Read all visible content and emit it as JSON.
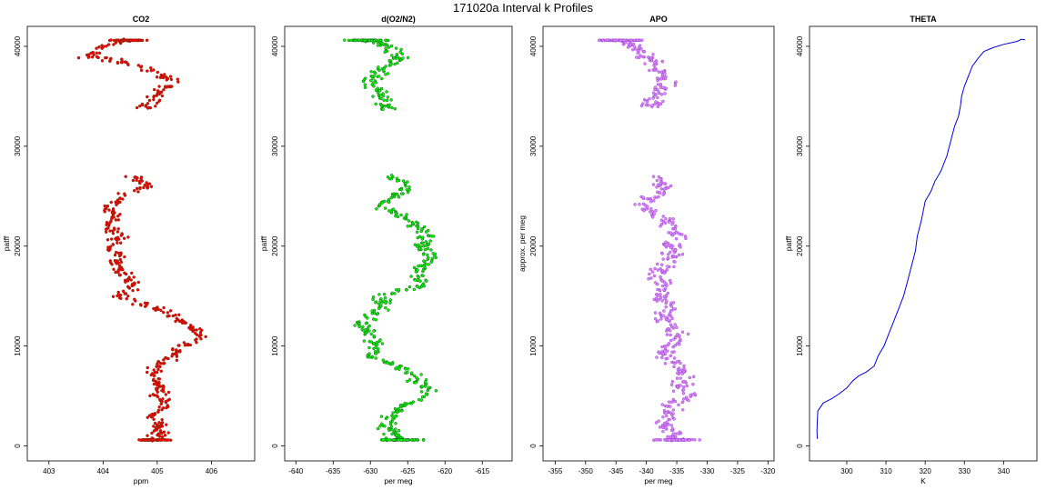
{
  "figure": {
    "title": "171020a   Interval k Profiles"
  },
  "chart_data": [
    {
      "type": "scatter",
      "title": "CO2",
      "xlabel": "ppm",
      "ylabel": "patff",
      "xlim": [
        402.6,
        406.8
      ],
      "ylim": [
        -1500,
        42000
      ],
      "xticks": [
        403,
        404,
        405,
        406
      ],
      "yticks": [
        0,
        10000,
        20000,
        30000,
        40000
      ],
      "colors": {
        "stroke": "#7a2a10",
        "fill": "#ff0000"
      },
      "trace": [
        [
          404.5,
          40600
        ],
        [
          404.0,
          40000
        ],
        [
          403.7,
          39000
        ],
        [
          404.3,
          38500
        ],
        [
          404.9,
          37500
        ],
        [
          405.3,
          36500
        ],
        [
          405.1,
          35500
        ],
        [
          404.9,
          34500
        ],
        [
          404.7,
          33700
        ],
        [
          404.6,
          27000
        ],
        [
          404.8,
          26000
        ],
        [
          404.3,
          25000
        ],
        [
          404.1,
          24000
        ],
        [
          404.2,
          23000
        ],
        [
          404.1,
          22000
        ],
        [
          404.3,
          21000
        ],
        [
          404.1,
          20000
        ],
        [
          404.3,
          19000
        ],
        [
          404.2,
          18000
        ],
        [
          404.4,
          17000
        ],
        [
          404.6,
          16000
        ],
        [
          404.3,
          15000
        ],
        [
          404.9,
          14000
        ],
        [
          405.3,
          13000
        ],
        [
          405.6,
          12000
        ],
        [
          405.8,
          11000
        ],
        [
          405.5,
          10000
        ],
        [
          405.3,
          9000
        ],
        [
          405.0,
          8000
        ],
        [
          404.9,
          7000
        ],
        [
          405.1,
          6000
        ],
        [
          405.0,
          5000
        ],
        [
          405.2,
          4000
        ],
        [
          404.9,
          3000
        ],
        [
          405.1,
          2000
        ],
        [
          405.0,
          1200
        ],
        [
          404.9,
          600
        ]
      ],
      "spread": 0.22,
      "points_per_segment": 14
    },
    {
      "type": "scatter",
      "title": "d(O2/N2)",
      "xlabel": "per meg",
      "ylabel": "patff",
      "xlim": [
        -641.5,
        -611
      ],
      "ylim": [
        -1500,
        42000
      ],
      "xticks": [
        -640,
        -635,
        -630,
        -625,
        -620,
        -615
      ],
      "yticks": [
        0,
        10000,
        20000,
        30000,
        40000
      ],
      "colors": {
        "stroke": "#1a5a1a",
        "fill": "#00ff00"
      },
      "trace": [
        [
          -630,
          40600
        ],
        [
          -628,
          40000
        ],
        [
          -626,
          39000
        ],
        [
          -627,
          38500
        ],
        [
          -629,
          37500
        ],
        [
          -630,
          36500
        ],
        [
          -629,
          35500
        ],
        [
          -628,
          34500
        ],
        [
          -628,
          33800
        ],
        [
          -627,
          27000
        ],
        [
          -625,
          26000
        ],
        [
          -627,
          25000
        ],
        [
          -629,
          24000
        ],
        [
          -626,
          23000
        ],
        [
          -624,
          22000
        ],
        [
          -622,
          21000
        ],
        [
          -623,
          20000
        ],
        [
          -622,
          19000
        ],
        [
          -623,
          18000
        ],
        [
          -624,
          17000
        ],
        [
          -623,
          16000
        ],
        [
          -629,
          15000
        ],
        [
          -628,
          14000
        ],
        [
          -630,
          13000
        ],
        [
          -631,
          12000
        ],
        [
          -630,
          11000
        ],
        [
          -629,
          10000
        ],
        [
          -630,
          9000
        ],
        [
          -626,
          8000
        ],
        [
          -624,
          7000
        ],
        [
          -623,
          6000
        ],
        [
          -622,
          5000
        ],
        [
          -626,
          4000
        ],
        [
          -627,
          3000
        ],
        [
          -628,
          2000
        ],
        [
          -627,
          1200
        ],
        [
          -626,
          600
        ]
      ],
      "spread": 1.8,
      "points_per_segment": 14
    },
    {
      "type": "scatter",
      "title": "APO",
      "xlabel": "per meg",
      "ylabel": "approx. per meg",
      "xlim": [
        -357,
        -319
      ],
      "ylim": [
        -1500,
        42000
      ],
      "xticks": [
        -355,
        -350,
        -345,
        -340,
        -335,
        -330,
        -325,
        -320
      ],
      "yticks": [
        0,
        10000,
        20000,
        30000,
        40000
      ],
      "colors": {
        "stroke": "#9a40d0",
        "fill": "#dd88ff"
      },
      "trace": [
        [
          -344,
          40600
        ],
        [
          -342,
          40000
        ],
        [
          -340,
          39000
        ],
        [
          -339,
          38500
        ],
        [
          -338,
          37500
        ],
        [
          -337,
          36500
        ],
        [
          -338,
          35500
        ],
        [
          -339,
          34500
        ],
        [
          -339,
          33800
        ],
        [
          -338,
          27000
        ],
        [
          -337,
          26000
        ],
        [
          -339,
          25000
        ],
        [
          -341,
          24000
        ],
        [
          -338,
          23000
        ],
        [
          -336,
          22000
        ],
        [
          -335,
          21000
        ],
        [
          -336,
          20000
        ],
        [
          -336,
          19000
        ],
        [
          -337,
          18000
        ],
        [
          -338,
          17000
        ],
        [
          -337,
          16000
        ],
        [
          -338,
          15000
        ],
        [
          -336,
          14000
        ],
        [
          -337,
          13000
        ],
        [
          -336,
          12000
        ],
        [
          -335,
          11000
        ],
        [
          -336,
          10000
        ],
        [
          -337,
          9000
        ],
        [
          -334,
          8000
        ],
        [
          -333,
          7000
        ],
        [
          -334,
          6000
        ],
        [
          -333,
          5000
        ],
        [
          -336,
          4000
        ],
        [
          -336,
          3000
        ],
        [
          -337,
          2000
        ],
        [
          -336,
          1200
        ],
        [
          -335,
          600
        ]
      ],
      "spread": 2.4,
      "points_per_segment": 14
    },
    {
      "type": "line",
      "title": "THETA",
      "xlabel": "K",
      "ylabel": "patff",
      "xlim": [
        290.5,
        348.5
      ],
      "ylim": [
        -1500,
        42000
      ],
      "xticks": [
        300,
        310,
        320,
        330,
        340
      ],
      "yticks": [
        0,
        10000,
        20000,
        30000,
        40000
      ],
      "colors": {
        "line": "#0000dd"
      },
      "x": [
        292.5,
        292.4,
        292.5,
        292.6,
        294.0,
        296.0,
        298.0,
        300.0,
        301.5,
        303.0,
        305.0,
        307.0,
        308.0,
        309.5,
        310.5,
        311.5,
        313.0,
        314.5,
        315.5,
        316.5,
        317.5,
        318.0,
        319.0,
        320.0,
        321.5,
        322.5,
        324.0,
        325.5,
        326.5,
        327.5,
        328.5,
        329.0,
        329.3,
        330.0,
        331.0,
        332.0,
        333.5,
        335.0,
        337.5,
        340.0,
        343.5,
        344.5,
        345.5
      ],
      "y": [
        700,
        1500,
        2500,
        3500,
        4300,
        4700,
        5200,
        5800,
        6500,
        7000,
        7400,
        8000,
        9000,
        10000,
        11000,
        12000,
        13500,
        15000,
        16500,
        18000,
        19500,
        21000,
        22500,
        24500,
        25500,
        26500,
        27500,
        29000,
        30500,
        32000,
        33000,
        34000,
        35000,
        36000,
        37000,
        38000,
        38800,
        39500,
        39900,
        40200,
        40500,
        40700,
        40650
      ]
    }
  ]
}
